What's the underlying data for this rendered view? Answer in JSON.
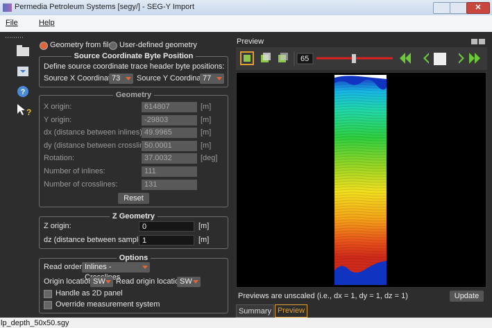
{
  "window": {
    "title": "Permedia Petroleum Systems [segy/] - SEG-Y Import"
  },
  "menu": [
    "File",
    "Help"
  ],
  "geometry_mode": {
    "options": [
      "Geometry from file",
      "User-defined geometry"
    ]
  },
  "source_coordinates": {
    "title": "Source Coordinate Byte Position",
    "description": "Define source coordinate trace header byte positions:",
    "x_label": "Source X Coordinate:",
    "x_value": "73",
    "y_label": "Source Y Coordinate:",
    "y_value": "77"
  },
  "geometry": {
    "title": "Geometry",
    "rows": [
      {
        "label": "X origin:",
        "value": "614807",
        "unit": "[m]"
      },
      {
        "label": "Y origin:",
        "value": "-29803",
        "unit": "[m]"
      },
      {
        "label": "dx (distance between inlines):",
        "value": "49.9965",
        "unit": "[m]"
      },
      {
        "label": "dy (distance between crosslines):",
        "value": "50.0001",
        "unit": "[m]"
      },
      {
        "label": "Rotation:",
        "value": "37.0032",
        "unit": "[deg]"
      },
      {
        "label": "Number of inlines:",
        "value": "111"
      },
      {
        "label": "Number of crosslines:",
        "value": "131"
      }
    ],
    "reset": "Reset"
  },
  "z_geometry": {
    "title": "Z Geometry",
    "rows": [
      {
        "label": "Z origin:",
        "value": "0",
        "unit": "[m]"
      },
      {
        "label": "dz (distance between samples):",
        "value": "1",
        "unit": "[m]"
      }
    ]
  },
  "options": {
    "title": "Options",
    "read_order_label": "Read order:",
    "read_order": "Inlines - Crosslines",
    "origin_label": "Origin location:",
    "origin": "SW",
    "read_origin_label": "Read origin location:",
    "read_origin": "SW",
    "checkboxes": [
      "Handle as 2D panel",
      "Override measurement system"
    ]
  },
  "preview": {
    "title": "Preview",
    "slice": "65",
    "note": "Previews are unscaled (i.e., dx = 1, dy = 1, dz = 1)",
    "update": "Update",
    "tabs": [
      "Summary",
      "Preview"
    ]
  },
  "status": "lp_depth_50x50.sgy"
}
